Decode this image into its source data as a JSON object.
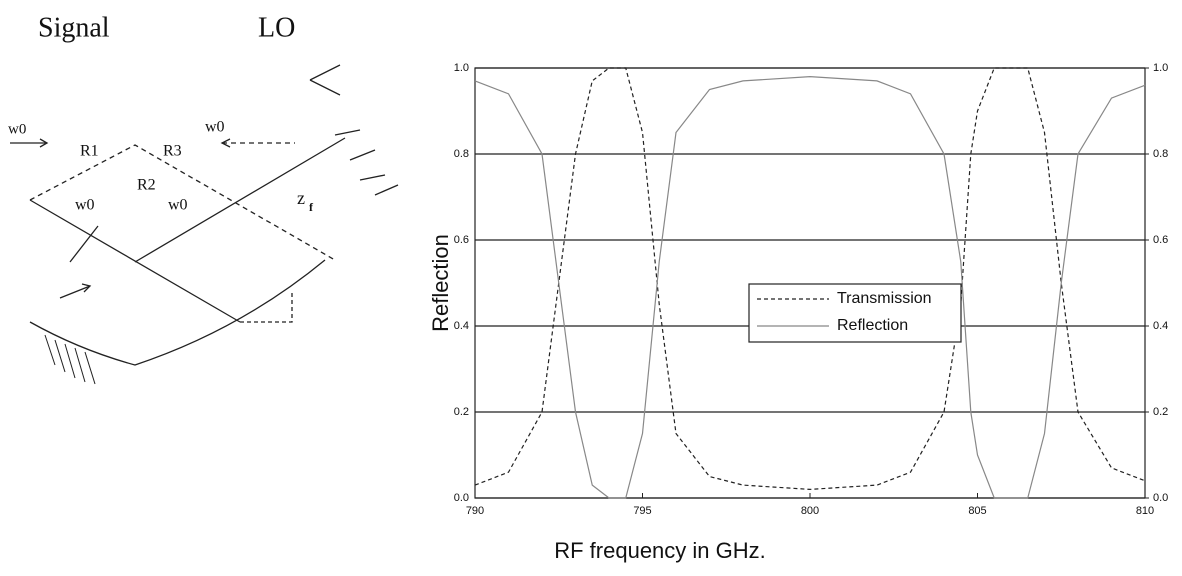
{
  "diagram": {
    "labels": [
      "Signal",
      "LO",
      "w0",
      "R1",
      "R3",
      "R2",
      "w0",
      "w0",
      "w0",
      "z",
      "f"
    ]
  },
  "chart_data": {
    "type": "line",
    "x_label": "RF frequency in GHz.",
    "y_label": "Reflection",
    "xlim": [
      790,
      810
    ],
    "xticks": [
      790,
      795,
      800,
      805,
      810
    ],
    "ylim": [
      0,
      1
    ],
    "yticks": [
      {
        "value": 0,
        "label": "0.0"
      },
      0.2,
      0.4,
      0.6,
      0.8,
      {
        "value": 1,
        "label": "1.0"
      }
    ],
    "y2lim": [
      0,
      1
    ],
    "y2ticks": [
      {
        "value": 0,
        "label": "0.0"
      },
      0.2,
      0.4,
      0.6,
      0.8,
      {
        "value": 1,
        "label": "1.0"
      }
    ],
    "grid": true,
    "legend": "center",
    "x": [
      790,
      791,
      792,
      792.5,
      793,
      793.5,
      794,
      794.5,
      795,
      795.5,
      796,
      797,
      798,
      800,
      802,
      803,
      804,
      804.5,
      804.8,
      805,
      805.5,
      806,
      806.5,
      807,
      807.5,
      808,
      809,
      810
    ],
    "series": [
      {
        "name": "Transmission",
        "color": "#222222",
        "style": "dashed",
        "values": [
          0.03,
          0.06,
          0.2,
          0.5,
          0.8,
          0.97,
          1.0,
          1.0,
          0.85,
          0.45,
          0.15,
          0.05,
          0.03,
          0.02,
          0.03,
          0.06,
          0.2,
          0.45,
          0.8,
          0.9,
          1.0,
          1.0,
          1.0,
          0.85,
          0.5,
          0.2,
          0.07,
          0.04
        ]
      },
      {
        "name": "Reflection",
        "color": "#888888",
        "style": "solid",
        "values": [
          0.97,
          0.94,
          0.8,
          0.5,
          0.2,
          0.03,
          0.0,
          0.0,
          0.15,
          0.55,
          0.85,
          0.95,
          0.97,
          0.98,
          0.97,
          0.94,
          0.8,
          0.55,
          0.2,
          0.1,
          0.0,
          0.0,
          0.0,
          0.15,
          0.5,
          0.8,
          0.93,
          0.96
        ]
      }
    ]
  }
}
